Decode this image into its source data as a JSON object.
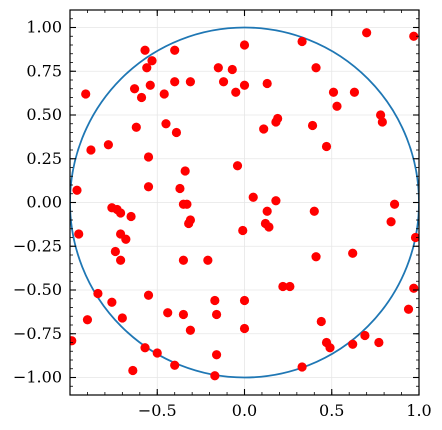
{
  "chart_data": {
    "type": "scatter",
    "title": "",
    "xlabel": "",
    "ylabel": "",
    "xlim": [
      -1.0,
      1.0
    ],
    "ylim": [
      -1.1,
      1.1
    ],
    "grid": true,
    "x_ticks": [
      -0.5,
      0.0,
      0.5,
      1.0
    ],
    "x_tick_labels": [
      "−0.5",
      "0.0",
      "0.5",
      "1.0"
    ],
    "y_ticks": [
      1.0,
      0.75,
      0.5,
      0.25,
      0.0,
      -0.25,
      -0.5,
      -0.75,
      -1.0
    ],
    "y_tick_labels": [
      "1.00",
      "0.75",
      "0.50",
      "0.25",
      "0.00",
      "−0.25",
      "−0.50",
      "−0.75",
      "−1.00"
    ],
    "circle": {
      "center": [
        0,
        0
      ],
      "radius": 1.0,
      "color": "#1f77b4"
    },
    "point_color": "#ff0000",
    "points": [
      [
        -0.57,
        0.87
      ],
      [
        -0.4,
        0.87
      ],
      [
        0.0,
        0.9
      ],
      [
        0.33,
        0.92
      ],
      [
        0.7,
        0.97
      ],
      [
        0.97,
        0.95
      ],
      [
        -0.91,
        0.62
      ],
      [
        -0.53,
        0.81
      ],
      [
        -0.56,
        0.77
      ],
      [
        -0.15,
        0.77
      ],
      [
        -0.07,
        0.76
      ],
      [
        0.41,
        0.77
      ],
      [
        -0.4,
        0.69
      ],
      [
        -0.31,
        0.69
      ],
      [
        -0.12,
        0.69
      ],
      [
        0.13,
        0.68
      ],
      [
        0.0,
        0.67
      ],
      [
        -0.63,
        0.65
      ],
      [
        -0.54,
        0.67
      ],
      [
        -0.46,
        0.62
      ],
      [
        -0.05,
        0.63
      ],
      [
        0.51,
        0.63
      ],
      [
        0.63,
        0.63
      ],
      [
        -0.59,
        0.6
      ],
      [
        0.53,
        0.55
      ],
      [
        0.78,
        0.5
      ],
      [
        0.79,
        0.46
      ],
      [
        0.18,
        0.46
      ],
      [
        0.19,
        0.48
      ],
      [
        -0.45,
        0.45
      ],
      [
        -0.62,
        0.43
      ],
      [
        0.11,
        0.42
      ],
      [
        0.39,
        0.44
      ],
      [
        -0.39,
        0.4
      ],
      [
        -0.78,
        0.33
      ],
      [
        -0.88,
        0.3
      ],
      [
        0.47,
        0.32
      ],
      [
        -0.55,
        0.26
      ],
      [
        -0.34,
        0.18
      ],
      [
        -0.04,
        0.21
      ],
      [
        -0.55,
        0.09
      ],
      [
        -0.37,
        0.08
      ],
      [
        -0.96,
        0.07
      ],
      [
        0.05,
        0.03
      ],
      [
        0.18,
        0.01
      ],
      [
        -0.35,
        -0.01
      ],
      [
        -0.33,
        -0.01
      ],
      [
        0.86,
        -0.01
      ],
      [
        -0.76,
        -0.03
      ],
      [
        -0.73,
        -0.04
      ],
      [
        -0.71,
        -0.06
      ],
      [
        0.4,
        -0.05
      ],
      [
        0.13,
        -0.05
      ],
      [
        -0.65,
        -0.08
      ],
      [
        -0.31,
        -0.1
      ],
      [
        -0.32,
        -0.12
      ],
      [
        0.12,
        -0.12
      ],
      [
        0.14,
        -0.14
      ],
      [
        0.84,
        -0.11
      ],
      [
        -0.95,
        -0.18
      ],
      [
        -0.71,
        -0.18
      ],
      [
        -0.68,
        -0.21
      ],
      [
        -0.01,
        -0.16
      ],
      [
        0.98,
        -0.2
      ],
      [
        -0.74,
        -0.28
      ],
      [
        -0.71,
        -0.33
      ],
      [
        -0.35,
        -0.33
      ],
      [
        -0.21,
        -0.33
      ],
      [
        0.41,
        -0.31
      ],
      [
        0.62,
        -0.29
      ],
      [
        -0.84,
        -0.52
      ],
      [
        -0.55,
        -0.53
      ],
      [
        0.22,
        -0.48
      ],
      [
        0.26,
        -0.48
      ],
      [
        0.97,
        -0.49
      ],
      [
        -0.76,
        -0.57
      ],
      [
        -0.17,
        -0.56
      ],
      [
        0.0,
        -0.56
      ],
      [
        0.94,
        -0.61
      ],
      [
        -0.44,
        -0.63
      ],
      [
        -0.35,
        -0.64
      ],
      [
        -0.16,
        -0.64
      ],
      [
        -0.9,
        -0.67
      ],
      [
        -0.7,
        -0.66
      ],
      [
        0.44,
        -0.68
      ],
      [
        -0.31,
        -0.73
      ],
      [
        0.0,
        -0.72
      ],
      [
        0.69,
        -0.76
      ],
      [
        0.62,
        -0.81
      ],
      [
        0.77,
        -0.8
      ],
      [
        -0.99,
        -0.79
      ],
      [
        -0.57,
        -0.83
      ],
      [
        -0.5,
        -0.86
      ],
      [
        -0.16,
        -0.87
      ],
      [
        0.47,
        -0.8
      ],
      [
        0.49,
        -0.83
      ],
      [
        -0.64,
        -0.96
      ],
      [
        -0.4,
        -0.93
      ],
      [
        0.33,
        -0.94
      ],
      [
        -0.17,
        -0.99
      ]
    ]
  }
}
